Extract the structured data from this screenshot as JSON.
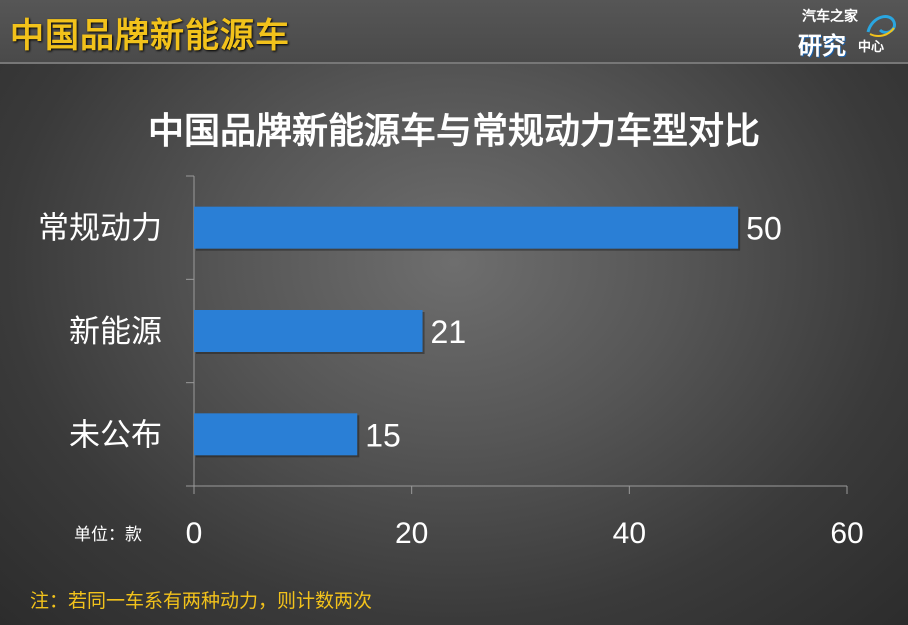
{
  "header": {
    "title": "中国品牌新能源车",
    "logo_top": "汽车之家",
    "logo_big": "研究",
    "logo_small": "中心"
  },
  "chart_data": {
    "type": "bar",
    "orientation": "horizontal",
    "title": "中国品牌新能源车与常规动力车型对比",
    "categories": [
      "常规动力",
      "新能源",
      "未公布"
    ],
    "values": [
      50,
      21,
      15
    ],
    "xlim": [
      0,
      60
    ],
    "ticks": [
      0,
      20,
      40,
      60
    ],
    "unit_label": "单位：款",
    "bar_color": "#2a7fd6",
    "grid": false
  },
  "footnote": "注：若同一车系有两种动力，则计数两次"
}
